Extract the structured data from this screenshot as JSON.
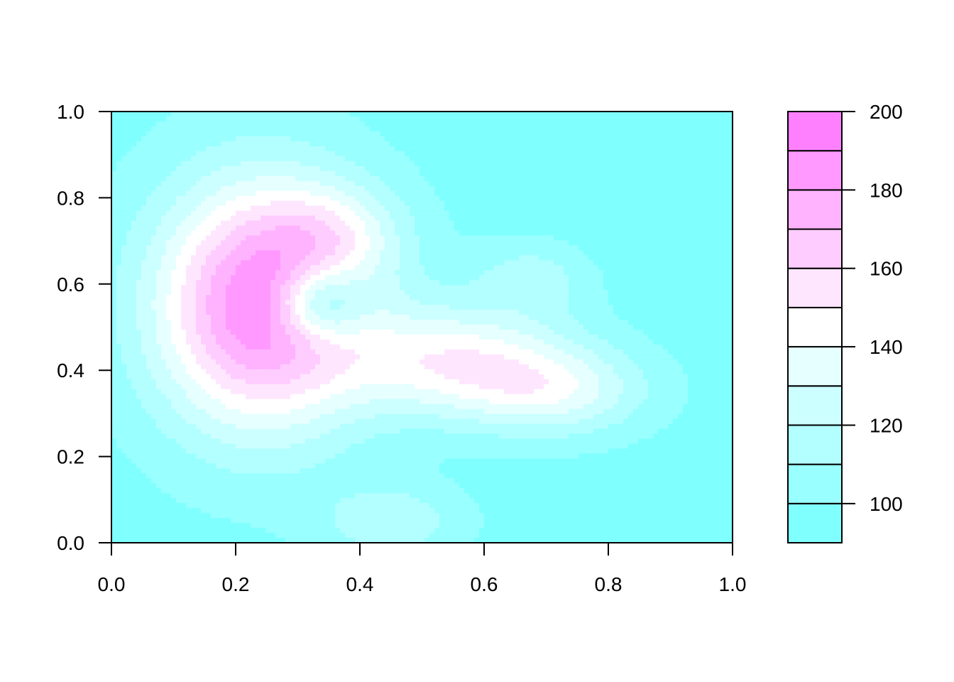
{
  "chart_data": {
    "type": "heatmap",
    "title": "",
    "xlabel": "",
    "ylabel": "",
    "xlim": [
      0,
      1
    ],
    "ylim": [
      0,
      1
    ],
    "x_ticks": [
      "0.0",
      "0.2",
      "0.4",
      "0.6",
      "0.8",
      "1.0"
    ],
    "y_ticks": [
      "0.0",
      "0.2",
      "0.4",
      "0.6",
      "0.8",
      "1.0"
    ],
    "colorbar": {
      "range": [
        90,
        200
      ],
      "levels": [
        90,
        100,
        110,
        120,
        130,
        140,
        150,
        160,
        170,
        180,
        190,
        200
      ],
      "tick_values": [
        100,
        120,
        140,
        160,
        180,
        200
      ],
      "tick_labels": [
        "100",
        "120",
        "140",
        "160",
        "180",
        "200"
      ],
      "colors": [
        "#80FFFF",
        "#99FFFF",
        "#B3FFFF",
        "#CCFFFF",
        "#E6FFFF",
        "#FFFFFF",
        "#FFE6FF",
        "#FFCCFF",
        "#FFB3FF",
        "#FF99FF",
        "#FF80FF"
      ]
    },
    "surface": {
      "base": 96,
      "features": [
        {
          "x": 0.24,
          "y": 0.55,
          "sx": 0.12,
          "sy": 0.2,
          "amp": 95
        },
        {
          "x": 0.36,
          "y": 0.72,
          "sx": 0.08,
          "sy": 0.08,
          "amp": 25
        },
        {
          "x": 0.56,
          "y": 0.42,
          "sx": 0.13,
          "sy": 0.09,
          "amp": 50
        },
        {
          "x": 0.72,
          "y": 0.35,
          "sx": 0.1,
          "sy": 0.07,
          "amp": 32
        },
        {
          "x": 0.68,
          "y": 0.62,
          "sx": 0.07,
          "sy": 0.06,
          "amp": 18
        },
        {
          "x": 0.335,
          "y": 0.555,
          "sx": 0.05,
          "sy": 0.06,
          "amp": -48
        },
        {
          "x": 0.45,
          "y": 0.05,
          "sx": 0.08,
          "sy": 0.06,
          "amp": 22
        },
        {
          "x": 0.95,
          "y": 0.9,
          "sx": 0.15,
          "sy": 0.2,
          "amp": -10
        }
      ]
    }
  }
}
